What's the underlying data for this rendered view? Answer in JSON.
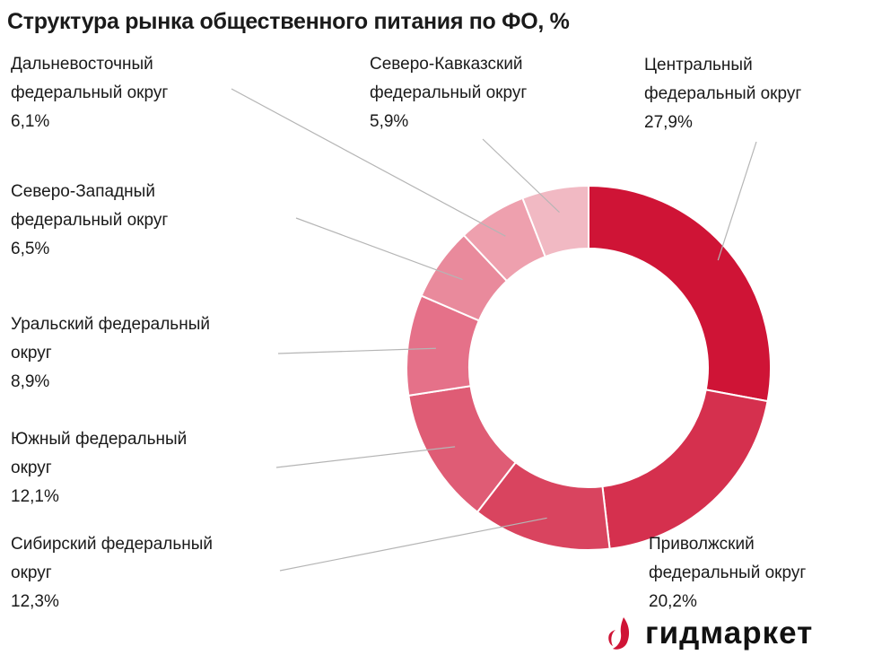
{
  "title": "Структура рынка общественного питания по ФО, %",
  "chart_data": {
    "type": "pie",
    "variant": "donut",
    "title": "Структура рынка общественного питания по ФО, %",
    "slices": [
      {
        "label_lines": [
          "Центральный",
          "федеральный округ"
        ],
        "value": 27.9,
        "value_label": "27,9%",
        "color": "#cf1436"
      },
      {
        "label_lines": [
          "Приволжский",
          "федеральный округ"
        ],
        "value": 20.2,
        "value_label": "20,2%",
        "color": "#d5304e"
      },
      {
        "label_lines": [
          "Сибирский федеральный",
          "округ"
        ],
        "value": 12.3,
        "value_label": "12,3%",
        "color": "#d9445f"
      },
      {
        "label_lines": [
          "Южный федеральный",
          "округ"
        ],
        "value": 12.1,
        "value_label": "12,1%",
        "color": "#df5c75"
      },
      {
        "label_lines": [
          "Уральский федеральный",
          "округ"
        ],
        "value": 8.9,
        "value_label": "8,9%",
        "color": "#e57189"
      },
      {
        "label_lines": [
          "Северо-Западный",
          "федеральный округ"
        ],
        "value": 6.5,
        "value_label": "6,5%",
        "color": "#e98a9c"
      },
      {
        "label_lines": [
          "Дальневосточный",
          "федеральный округ"
        ],
        "value": 6.1,
        "value_label": "6,1%",
        "color": "#eea0ae"
      },
      {
        "label_lines": [
          "Северо-Кавказский",
          "федеральный округ"
        ],
        "value": 5.9,
        "value_label": "5,9%",
        "color": "#f1b9c3"
      }
    ],
    "legend": "none",
    "label_style": "callout-lines"
  },
  "logo": {
    "text": "гидмаркет",
    "icon": "flame-logo-icon",
    "color": "#cf1436"
  }
}
